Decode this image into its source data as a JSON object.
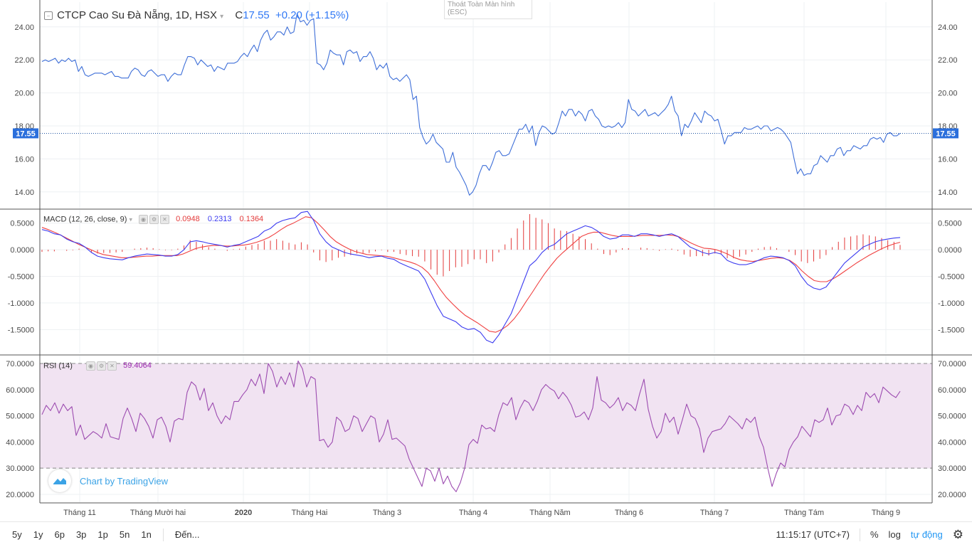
{
  "legend": {
    "symbol": "CTCP Cao Su Đà Nẵng, 1D, HSX",
    "ohlc_prefix": "C",
    "close": "17.55",
    "change": "+0.20 (+1.15%)",
    "last_price_tag": "17.55"
  },
  "fullscreen_tip": {
    "line1": "Thoát Toàn Màn hình",
    "line2": "(ESC)"
  },
  "macd_legend": {
    "name": "MACD (12, 26, close, 9)",
    "hist": "0.0948",
    "macd": "0.2313",
    "signal": "0.1364"
  },
  "rsi_legend": {
    "name": "RSI (14)",
    "value": "59.4064"
  },
  "watermark": "Chart by TradingView",
  "bottom_bar": {
    "ranges": [
      "5y",
      "1y",
      "6p",
      "3p",
      "1p",
      "5n",
      "1n"
    ],
    "goto": "Đến...",
    "time": "11:15:17 (UTC+7)",
    "percent": "%",
    "log": "log",
    "auto": "tự động",
    "settings_icon": "gear-icon"
  },
  "colors": {
    "price_line": "#3e6fd8",
    "macd_line": "#3b3bf0",
    "signal_line": "#f04040",
    "histogram": "#e33a3a",
    "rsi_line": "#9c4bb0",
    "rsi_band": "#f1e3f2"
  },
  "chart_data": [
    {
      "type": "line",
      "name": "price",
      "ylim": [
        13.0,
        25.5
      ],
      "yticks": [
        "14.00",
        "16.00",
        "18.00",
        "20.00",
        "22.00",
        "24.00"
      ],
      "last": 17.55,
      "x_labels": [
        "Tháng 11",
        "Tháng Mười hai",
        "2020",
        "Tháng Hai",
        "Tháng 3",
        "Tháng 4",
        "Tháng Năm",
        "Tháng 6",
        "Tháng 7",
        "Tháng Tám",
        "Tháng 9"
      ],
      "values": [
        21.9,
        22.0,
        21.9,
        22.0,
        22.1,
        21.8,
        22.0,
        21.9,
        22.1,
        21.9,
        22.0,
        21.3,
        21.6,
        21.1,
        21.0,
        21.1,
        21.2,
        21.2,
        21.2,
        21.1,
        21.2,
        21.3,
        21.0,
        21.0,
        20.9,
        20.9,
        20.9,
        21.3,
        21.5,
        21.4,
        21.1,
        21.0,
        21.3,
        21.4,
        21.2,
        21.0,
        21.1,
        21.1,
        20.7,
        21.0,
        21.2,
        21.1,
        21.1,
        21.7,
        22.2,
        22.2,
        22.1,
        21.7,
        22.0,
        21.8,
        21.6,
        21.7,
        21.3,
        21.6,
        21.5,
        21.4,
        21.8,
        21.8,
        21.8,
        21.9,
        22.2,
        22.4,
        22.2,
        22.6,
        22.9,
        22.5,
        23.2,
        23.6,
        23.8,
        23.2,
        23.4,
        23.7,
        23.7,
        23.5,
        24.0,
        23.6,
        23.7,
        24.8,
        24.3,
        24.4,
        24.1,
        24.4,
        24.5,
        21.8,
        21.7,
        21.4,
        21.8,
        22.6,
        22.4,
        22.3,
        22.3,
        21.7,
        22.5,
        22.6,
        22.4,
        22.5,
        21.9,
        22.2,
        22.2,
        22.5,
        22.1,
        21.4,
        21.7,
        21.5,
        21.8,
        21.0,
        20.8,
        20.9,
        20.7,
        20.9,
        21.1,
        20.8,
        19.6,
        19.8,
        17.9,
        17.3,
        16.9,
        17.1,
        17.5,
        17.0,
        16.8,
        16.6,
        15.8,
        15.8,
        16.4,
        15.5,
        15.2,
        14.8,
        14.4,
        13.8,
        14.0,
        14.4,
        15.1,
        15.6,
        15.6,
        15.3,
        15.8,
        16.4,
        16.5,
        16.2,
        16.2,
        16.3,
        16.8,
        17.3,
        17.8,
        17.8,
        18.1,
        17.6,
        18.0,
        16.8,
        17.6,
        18.0,
        17.9,
        17.7,
        17.5,
        17.6,
        18.2,
        18.9,
        18.6,
        19.0,
        19.0,
        18.6,
        18.9,
        18.7,
        18.3,
        18.9,
        19.0,
        18.6,
        18.4,
        18.0,
        17.9,
        18.0,
        17.9,
        18.0,
        18.2,
        17.9,
        18.2,
        19.6,
        19.0,
        18.9,
        18.6,
        18.8,
        19.0,
        18.6,
        18.7,
        18.8,
        18.6,
        18.8,
        19.0,
        19.3,
        19.8,
        18.9,
        18.6,
        17.4,
        18.1,
        17.9,
        18.3,
        18.8,
        18.5,
        18.2,
        18.9,
        18.7,
        18.6,
        18.3,
        18.4,
        17.7,
        16.9,
        17.4,
        17.4,
        17.6,
        17.6,
        17.6,
        17.9,
        17.8,
        17.8,
        17.9,
        18.0,
        17.8,
        18.0,
        18.0,
        17.7,
        17.8,
        17.9,
        17.8,
        17.6,
        17.3,
        17.0,
        16.0,
        15.1,
        15.4,
        15.0,
        15.1,
        15.1,
        15.6,
        15.7,
        16.2,
        16.0,
        15.8,
        16.2,
        16.2,
        16.6,
        16.7,
        16.2,
        16.5,
        16.5,
        16.8,
        16.7,
        16.6,
        16.8,
        16.8,
        17.2,
        17.3,
        17.2,
        17.3,
        17.0,
        17.5,
        17.6,
        17.4,
        17.4,
        17.55
      ]
    },
    {
      "type": "line",
      "name": "MACD",
      "ylim": [
        -1.95,
        0.75
      ],
      "yticks": [
        "-1.5000",
        "-1.0000",
        "-0.5000",
        "0.0000",
        "0.5000"
      ],
      "series": [
        {
          "name": "MACD",
          "values": [
            0.38,
            0.35,
            0.3,
            0.28,
            0.2,
            0.15,
            0.12,
            0.05,
            -0.05,
            -0.12,
            -0.15,
            -0.17,
            -0.18,
            -0.19,
            -0.15,
            -0.12,
            -0.1,
            -0.08,
            -0.09,
            -0.1,
            -0.12,
            -0.12,
            -0.09,
            0.0,
            0.15,
            0.17,
            0.15,
            0.12,
            0.1,
            0.08,
            0.05,
            0.08,
            0.1,
            0.15,
            0.2,
            0.25,
            0.35,
            0.4,
            0.5,
            0.55,
            0.58,
            0.6,
            0.7,
            0.72,
            0.55,
            0.3,
            0.15,
            0.05,
            0.0,
            -0.05,
            -0.08,
            -0.1,
            -0.12,
            -0.15,
            -0.13,
            -0.12,
            -0.16,
            -0.18,
            -0.25,
            -0.3,
            -0.35,
            -0.4,
            -0.55,
            -0.8,
            -1.05,
            -1.25,
            -1.3,
            -1.35,
            -1.45,
            -1.5,
            -1.48,
            -1.55,
            -1.7,
            -1.75,
            -1.6,
            -1.4,
            -1.2,
            -0.9,
            -0.6,
            -0.3,
            -0.2,
            -0.05,
            0.05,
            0.1,
            0.2,
            0.3,
            0.35,
            0.4,
            0.45,
            0.42,
            0.35,
            0.25,
            0.2,
            0.22,
            0.28,
            0.28,
            0.25,
            0.3,
            0.3,
            0.28,
            0.25,
            0.28,
            0.3,
            0.25,
            0.15,
            0.05,
            0.0,
            -0.05,
            -0.08,
            -0.05,
            -0.08,
            -0.2,
            -0.25,
            -0.28,
            -0.28,
            -0.25,
            -0.2,
            -0.15,
            -0.12,
            -0.13,
            -0.15,
            -0.2,
            -0.3,
            -0.5,
            -0.65,
            -0.72,
            -0.75,
            -0.7,
            -0.55,
            -0.4,
            -0.25,
            -0.15,
            -0.05,
            0.05,
            0.1,
            0.15,
            0.18,
            0.2,
            0.22,
            0.23
          ]
        },
        {
          "name": "Signal",
          "values": [
            0.42,
            0.38,
            0.33,
            0.28,
            0.22,
            0.16,
            0.1,
            0.05,
            0.0,
            -0.05,
            -0.09,
            -0.11,
            -0.13,
            -0.15,
            -0.15,
            -0.14,
            -0.13,
            -0.12,
            -0.12,
            -0.11,
            -0.11,
            -0.11,
            -0.11,
            -0.08,
            -0.03,
            0.02,
            0.05,
            0.07,
            0.08,
            0.08,
            0.07,
            0.07,
            0.08,
            0.09,
            0.11,
            0.14,
            0.18,
            0.23,
            0.3,
            0.38,
            0.45,
            0.5,
            0.56,
            0.62,
            0.6,
            0.5,
            0.38,
            0.25,
            0.15,
            0.08,
            0.02,
            -0.03,
            -0.06,
            -0.09,
            -0.1,
            -0.11,
            -0.12,
            -0.14,
            -0.17,
            -0.2,
            -0.23,
            -0.27,
            -0.33,
            -0.43,
            -0.58,
            -0.75,
            -0.9,
            -1.02,
            -1.13,
            -1.23,
            -1.3,
            -1.37,
            -1.45,
            -1.53,
            -1.55,
            -1.5,
            -1.42,
            -1.3,
            -1.15,
            -0.97,
            -0.8,
            -0.62,
            -0.45,
            -0.3,
            -0.16,
            -0.05,
            0.05,
            0.15,
            0.25,
            0.3,
            0.33,
            0.33,
            0.3,
            0.27,
            0.25,
            0.25,
            0.25,
            0.26,
            0.27,
            0.27,
            0.27,
            0.27,
            0.28,
            0.27,
            0.24,
            0.18,
            0.12,
            0.07,
            0.03,
            0.02,
            0.0,
            -0.04,
            -0.09,
            -0.15,
            -0.19,
            -0.21,
            -0.22,
            -0.2,
            -0.18,
            -0.16,
            -0.15,
            -0.16,
            -0.2,
            -0.28,
            -0.4,
            -0.5,
            -0.58,
            -0.6,
            -0.6,
            -0.55,
            -0.48,
            -0.4,
            -0.32,
            -0.24,
            -0.17,
            -0.1,
            -0.04,
            0.02,
            0.07,
            0.11,
            0.14
          ]
        },
        {
          "name": "Histogram",
          "values": [
            -0.04,
            -0.03,
            -0.03,
            0.0,
            -0.02,
            -0.01,
            0.02,
            0.0,
            -0.05,
            -0.07,
            -0.06,
            -0.06,
            -0.05,
            -0.04,
            0.0,
            0.02,
            0.03,
            0.04,
            0.03,
            0.01,
            -0.01,
            -0.01,
            0.02,
            0.08,
            0.18,
            0.15,
            0.1,
            0.05,
            0.02,
            0.0,
            -0.02,
            0.01,
            0.02,
            0.06,
            0.09,
            0.11,
            0.17,
            0.17,
            0.2,
            0.17,
            0.13,
            0.1,
            0.14,
            0.1,
            -0.05,
            -0.2,
            -0.23,
            -0.2,
            -0.15,
            -0.13,
            -0.1,
            -0.07,
            -0.06,
            -0.06,
            -0.03,
            -0.01,
            -0.04,
            -0.04,
            -0.08,
            -0.1,
            -0.12,
            -0.13,
            -0.22,
            -0.37,
            -0.47,
            -0.5,
            -0.4,
            -0.33,
            -0.32,
            -0.27,
            -0.18,
            -0.18,
            -0.25,
            -0.22,
            -0.05,
            0.1,
            0.22,
            0.4,
            0.55,
            0.67,
            0.6,
            0.57,
            0.5,
            0.4,
            0.36,
            0.35,
            0.3,
            0.25,
            0.2,
            0.12,
            0.02,
            -0.08,
            -0.1,
            -0.05,
            0.03,
            0.03,
            0.0,
            0.04,
            0.03,
            0.01,
            -0.02,
            0.01,
            0.02,
            -0.02,
            -0.09,
            -0.13,
            -0.12,
            -0.12,
            -0.11,
            -0.07,
            -0.08,
            -0.16,
            -0.16,
            -0.13,
            -0.09,
            -0.04,
            0.02,
            0.05,
            0.06,
            0.03,
            0.0,
            -0.04,
            -0.1,
            -0.22,
            -0.25,
            -0.22,
            -0.17,
            -0.1,
            0.05,
            0.15,
            0.23,
            0.25,
            0.27,
            0.29,
            0.27,
            0.25,
            0.22,
            0.18,
            0.15,
            0.09
          ]
        }
      ]
    },
    {
      "type": "line",
      "name": "RSI",
      "ylim": [
        17,
        73
      ],
      "yticks": [
        "20.0000",
        "30.0000",
        "40.0000",
        "50.0000",
        "60.0000",
        "70.0000"
      ],
      "bands": [
        30,
        70
      ],
      "values": [
        50.5,
        54.0,
        52.0,
        55.0,
        51.0,
        54.5,
        52.0,
        53.5,
        42.5,
        46.5,
        41.0,
        42.5,
        44.0,
        43.0,
        41.5,
        47.0,
        42.0,
        41.5,
        41.0,
        49.0,
        53.0,
        49.0,
        44.0,
        51.0,
        49.0,
        46.0,
        41.5,
        48.5,
        49.5,
        46.0,
        40.0,
        48.0,
        49.0,
        48.5,
        59.0,
        63.0,
        61.5,
        56.0,
        60.5,
        52.0,
        55.0,
        50.0,
        47.0,
        50.0,
        48.5,
        55.5,
        55.5,
        58.0,
        60.0,
        64.0,
        61.5,
        66.0,
        58.5,
        70.0,
        67.0,
        61.0,
        65.0,
        62.0,
        66.5,
        61.0,
        71.0,
        68.0,
        61.0,
        65.0,
        64.0,
        40.5,
        41.0,
        38.0,
        40.0,
        49.5,
        48.0,
        44.0,
        45.0,
        50.0,
        49.0,
        44.0,
        47.0,
        50.0,
        49.0,
        40.0,
        43.0,
        48.5,
        41.0,
        41.5,
        40.0,
        38.5,
        33.5,
        30.0,
        26.5,
        23.0,
        30.0,
        29.0,
        25.0,
        30.0,
        24.0,
        27.0,
        23.0,
        21.0,
        24.5,
        30.0,
        39.0,
        41.0,
        39.5,
        46.5,
        45.0,
        45.5,
        44.0,
        50.5,
        55.0,
        54.0,
        57.0,
        48.5,
        53.0,
        56.0,
        55.0,
        52.0,
        55.5,
        60.0,
        62.0,
        60.5,
        59.5,
        56.5,
        59.0,
        57.0,
        54.0,
        49.5,
        50.0,
        51.5,
        48.5,
        53.0,
        65.0,
        56.0,
        55.0,
        53.0,
        54.5,
        57.0,
        52.0,
        55.0,
        54.0,
        52.0,
        58.5,
        64.0,
        52.5,
        46.0,
        41.5,
        44.0,
        51.0,
        47.5,
        49.5,
        43.0,
        48.5,
        54.5,
        50.0,
        49.0,
        45.0,
        36.0,
        41.5,
        44.0,
        44.5,
        45.0,
        47.0,
        50.0,
        48.5,
        47.0,
        45.0,
        49.0,
        47.5,
        49.5,
        42.0,
        38.0,
        30.0,
        23.0,
        28.0,
        32.0,
        30.5,
        37.0,
        40.0,
        42.0,
        46.0,
        44.0,
        42.0,
        48.5,
        47.5,
        48.5,
        53.0,
        46.5,
        50.0,
        50.5,
        54.5,
        53.5,
        50.5,
        54.0,
        52.0,
        59.0,
        57.0,
        58.5,
        55.0,
        61.0,
        59.5,
        58.0,
        57.0,
        59.4
      ]
    }
  ]
}
